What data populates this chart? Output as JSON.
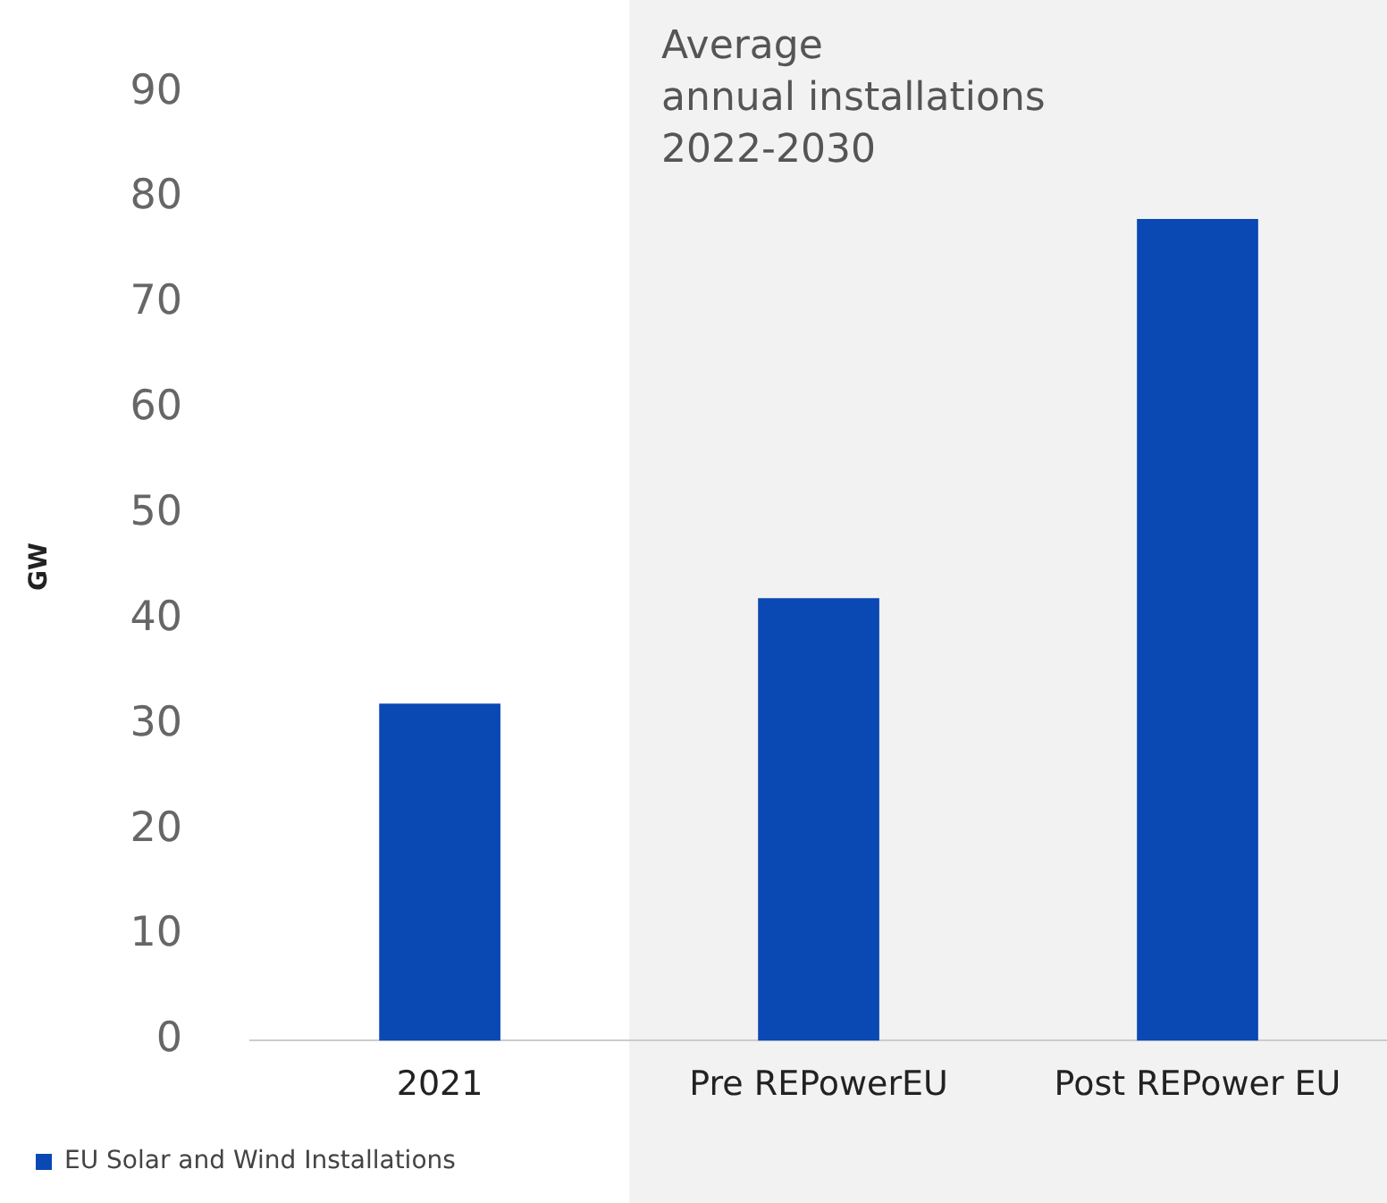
{
  "chart_data": {
    "type": "bar",
    "ylabel": "GW",
    "categories": [
      "2021",
      "Pre REPowerEU",
      "Post REPower EU"
    ],
    "series": [
      {
        "name": "EU Solar and Wind Installations",
        "color": "#0a48b4",
        "values": [
          32,
          42,
          78
        ]
      }
    ],
    "ylim": [
      0,
      90
    ],
    "yticks": [
      0,
      10,
      20,
      30,
      40,
      50,
      60,
      70,
      80,
      90
    ],
    "grid": false,
    "legend": "bottom left",
    "bands": [
      {
        "axis": "x",
        "from": "Pre REPowerEU",
        "to": "Post REPower EU",
        "label": "Average\nannual installations\n2022-2030",
        "color": "#f2f2f2"
      }
    ]
  }
}
